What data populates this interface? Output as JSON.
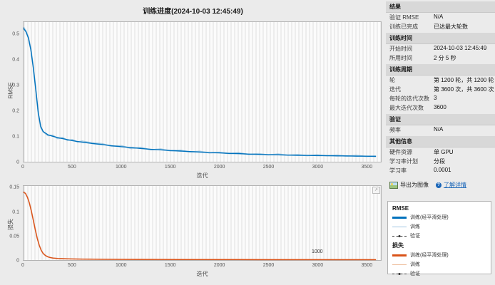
{
  "window": {
    "title": "训练进度(2024-10-03 12:45:49)"
  },
  "sidebar": {
    "sections": [
      {
        "title": "结果",
        "rows": [
          {
            "label": "验证 RMSE",
            "value": "N/A"
          },
          {
            "label": "训练已完成",
            "value": "已达最大轮数"
          }
        ]
      },
      {
        "title": "训练时间",
        "rows": [
          {
            "label": "开始时间",
            "value": "2024-10-03 12:45:49"
          },
          {
            "label": "所用时间",
            "value": "2 分 5 秒"
          }
        ]
      },
      {
        "title": "训练周期",
        "rows": [
          {
            "label": "轮",
            "value": "第 1200 轮，共 1200 轮"
          },
          {
            "label": "迭代",
            "value": "第 3600 次，共 3600 次"
          },
          {
            "label": "每轮的迭代次数",
            "value": "3"
          },
          {
            "label": "最大迭代次数",
            "value": "3600"
          }
        ]
      },
      {
        "title": "验证",
        "rows": [
          {
            "label": "频率",
            "value": "N/A"
          }
        ]
      },
      {
        "title": "其他信息",
        "rows": [
          {
            "label": "硬件资源",
            "value": "单 GPU"
          },
          {
            "label": "学习率计划",
            "value": "分段"
          },
          {
            "label": "学习率",
            "value": "0.0001"
          }
        ]
      }
    ],
    "buttons": {
      "export_label": "导出为图像",
      "learn_more_label": "了解详情"
    }
  },
  "legend": {
    "groups": [
      {
        "title": "RMSE",
        "items": [
          {
            "label": "训练(经平滑处理)",
            "color": "#0072BD",
            "style": "thick"
          },
          {
            "label": "训练",
            "color": "#9fc6e2",
            "style": "thin"
          },
          {
            "label": "验证",
            "color": "#333333",
            "style": "dashed-dot"
          }
        ]
      },
      {
        "title": "损失",
        "items": [
          {
            "label": "训练(经平滑处理)",
            "color": "#D95319",
            "style": "thick"
          },
          {
            "label": "训练",
            "color": "#eebf9e",
            "style": "thin"
          },
          {
            "label": "验证",
            "color": "#333333",
            "style": "dashed-dot"
          }
        ]
      }
    ]
  },
  "chart_data": [
    {
      "type": "line",
      "xlabel": "迭代",
      "ylabel": "RMSE",
      "xlim": [
        0,
        3650
      ],
      "ylim": [
        0,
        0.55
      ],
      "xticks": [
        0,
        500,
        1000,
        1500,
        2000,
        2500,
        3000,
        3500
      ],
      "yticks": [
        {
          "v": 0,
          "l": "0"
        },
        {
          "v": 0.1,
          "l": "0.1"
        },
        {
          "v": 0.2,
          "l": "0.2"
        },
        {
          "v": 0.3,
          "l": "0.3"
        },
        {
          "v": 0.4,
          "l": "0.4"
        },
        {
          "v": 0.5,
          "l": "0.5"
        }
      ],
      "x": [
        0,
        25,
        50,
        75,
        100,
        125,
        150,
        175,
        200,
        250,
        300,
        350,
        400,
        450,
        500,
        550,
        600,
        700,
        800,
        900,
        1000,
        1100,
        1200,
        1300,
        1400,
        1500,
        1600,
        1700,
        1800,
        1900,
        2000,
        2100,
        2200,
        2300,
        2400,
        2500,
        2600,
        2700,
        2800,
        2900,
        3000,
        3100,
        3200,
        3300,
        3400,
        3500,
        3600
      ],
      "series": [
        {
          "name": "训练",
          "color": "rgba(0,114,189,0.35)",
          "width": 1.8,
          "values": [
            0.53,
            0.515,
            0.49,
            0.445,
            0.37,
            0.285,
            0.19,
            0.135,
            0.118,
            0.103,
            0.104,
            0.091,
            0.095,
            0.084,
            0.087,
            0.078,
            0.081,
            0.074,
            0.071,
            0.061,
            0.063,
            0.052,
            0.056,
            0.047,
            0.05,
            0.043,
            0.045,
            0.039,
            0.041,
            0.035,
            0.037,
            0.032,
            0.035,
            0.029,
            0.032,
            0.027,
            0.03,
            0.026,
            0.028,
            0.024,
            0.027,
            0.023,
            0.026,
            0.022,
            0.025,
            0.021,
            0.023
          ]
        },
        {
          "name": "训练(经平滑处理)",
          "color": "#0072BD",
          "width": 1.4,
          "values": [
            0.525,
            0.512,
            0.487,
            0.44,
            0.37,
            0.285,
            0.195,
            0.14,
            0.119,
            0.106,
            0.1,
            0.095,
            0.091,
            0.087,
            0.083,
            0.08,
            0.077,
            0.072,
            0.068,
            0.063,
            0.059,
            0.056,
            0.052,
            0.049,
            0.047,
            0.044,
            0.042,
            0.04,
            0.038,
            0.036,
            0.035,
            0.033,
            0.032,
            0.03,
            0.029,
            0.028,
            0.027,
            0.026,
            0.025,
            0.025,
            0.024,
            0.024,
            0.023,
            0.023,
            0.022,
            0.022,
            0.021
          ]
        }
      ],
      "annotations": []
    },
    {
      "type": "line",
      "xlabel": "迭代",
      "ylabel": "损失",
      "xlim": [
        0,
        3650
      ],
      "ylim": [
        0,
        0.155
      ],
      "xticks": [
        0,
        500,
        1000,
        1500,
        2000,
        2500,
        3000,
        3500
      ],
      "yticks": [
        {
          "v": 0,
          "l": "0"
        },
        {
          "v": 0.05,
          "l": "0.05"
        },
        {
          "v": 0.1,
          "l": "0.1"
        },
        {
          "v": 0.15,
          "l": "0.15"
        }
      ],
      "x": [
        0,
        20,
        40,
        60,
        80,
        100,
        120,
        140,
        160,
        180,
        200,
        225,
        250,
        275,
        300,
        350,
        400,
        450,
        500,
        600,
        700,
        800,
        1000,
        1200,
        1400,
        1600,
        1800,
        2000,
        2200,
        2400,
        2600,
        2800,
        3000,
        3200,
        3400,
        3600
      ],
      "series": [
        {
          "name": "训练",
          "color": "rgba(217,83,25,0.35)",
          "width": 1.8,
          "values": [
            0.143,
            0.14,
            0.132,
            0.12,
            0.103,
            0.084,
            0.064,
            0.046,
            0.032,
            0.021,
            0.014,
            0.0095,
            0.0068,
            0.0052,
            0.0043,
            0.0034,
            0.0029,
            0.0026,
            0.0024,
            0.0021,
            0.0019,
            0.0017,
            0.0015,
            0.0013,
            0.0012,
            0.0012,
            0.0011,
            0.001,
            0.001,
            0.001,
            0.0009,
            0.0009,
            0.0009,
            0.0008,
            0.0008,
            0.0008
          ]
        },
        {
          "name": "训练(经平滑处理)",
          "color": "#D95319",
          "width": 1.4,
          "values": [
            0.142,
            0.139,
            0.131,
            0.119,
            0.102,
            0.083,
            0.063,
            0.045,
            0.031,
            0.0205,
            0.0138,
            0.0093,
            0.0066,
            0.0051,
            0.0042,
            0.0033,
            0.0028,
            0.0025,
            0.0023,
            0.002,
            0.0018,
            0.0016,
            0.0014,
            0.0013,
            0.0012,
            0.0011,
            0.0011,
            0.001,
            0.001,
            0.0009,
            0.0009,
            0.0009,
            0.0008,
            0.0008,
            0.0008,
            0.0008
          ]
        }
      ],
      "annotations": [
        {
          "x": 3000,
          "y": 0.012,
          "text": "1000"
        }
      ]
    }
  ]
}
